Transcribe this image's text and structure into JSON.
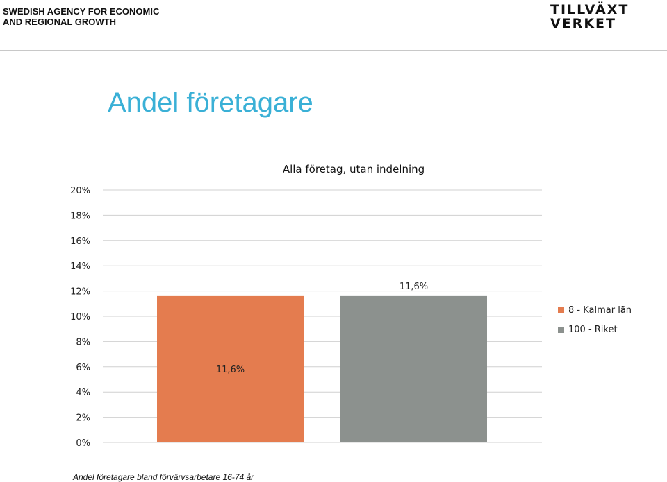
{
  "header": {
    "agency_line1": "SWEDISH AGENCY FOR ECONOMIC",
    "agency_line2": "AND REGIONAL GROWTH",
    "logo_line1": "TILLVÄXT",
    "logo_line2": "VERKET"
  },
  "slide_title": "Andel företagare",
  "footer_note": "Andel företagare bland förvärvsarbetare 16-74 år",
  "colors": {
    "title": "#3ab0d6",
    "series1": "#e47c4f",
    "series2": "#8c918e",
    "grid": "#d0d0d0"
  },
  "chart_data": {
    "type": "bar",
    "title": "Alla företag, utan indelning",
    "categories": [
      ""
    ],
    "series": [
      {
        "name": "8 - Kalmar län",
        "values": [
          11.6
        ],
        "label": "11,6%",
        "color": "#e47c4f"
      },
      {
        "name": "100 - Riket",
        "values": [
          11.6
        ],
        "label": "11,6%",
        "color": "#8c918e"
      }
    ],
    "ylim": [
      0,
      20
    ],
    "yticks": [
      "0%",
      "2%",
      "4%",
      "6%",
      "8%",
      "10%",
      "12%",
      "14%",
      "16%",
      "18%",
      "20%"
    ],
    "grid": true,
    "legend_position": "right"
  }
}
